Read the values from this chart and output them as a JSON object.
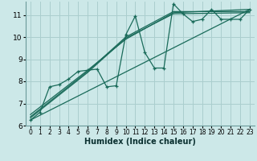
{
  "xlabel": "Humidex (Indice chaleur)",
  "bg_color": "#cce8e8",
  "grid_color": "#aacece",
  "line_color": "#1a6b5a",
  "xlim": [
    -0.5,
    23.5
  ],
  "ylim": [
    6,
    11.6
  ],
  "xticks": [
    0,
    1,
    2,
    3,
    4,
    5,
    6,
    7,
    8,
    9,
    10,
    11,
    12,
    13,
    14,
    15,
    16,
    17,
    18,
    19,
    20,
    21,
    22,
    23
  ],
  "yticks": [
    6,
    7,
    8,
    9,
    10,
    11
  ],
  "line1_x": [
    0,
    1,
    2,
    3,
    4,
    5,
    6,
    7,
    8,
    9,
    10,
    11,
    12,
    13,
    14,
    15,
    16,
    17,
    18,
    19,
    20,
    21,
    22,
    23
  ],
  "line1_y": [
    6.25,
    6.6,
    7.75,
    7.85,
    8.1,
    8.45,
    8.5,
    8.55,
    7.75,
    7.8,
    10.1,
    10.95,
    9.3,
    8.6,
    8.6,
    11.5,
    11.05,
    10.7,
    10.8,
    11.25,
    10.8,
    10.8,
    10.8,
    11.25
  ],
  "line2_x": [
    0,
    23
  ],
  "line2_y": [
    6.25,
    11.25
  ],
  "line3_x": [
    0,
    6,
    10,
    15,
    23
  ],
  "line3_y": [
    6.5,
    8.5,
    9.9,
    11.1,
    11.25
  ],
  "line4_x": [
    0,
    6,
    10,
    15,
    23
  ],
  "line4_y": [
    6.4,
    8.45,
    10.0,
    11.15,
    11.15
  ],
  "line5_x": [
    0,
    6,
    10,
    15,
    23
  ],
  "line5_y": [
    6.35,
    8.4,
    9.95,
    11.05,
    11.1
  ]
}
